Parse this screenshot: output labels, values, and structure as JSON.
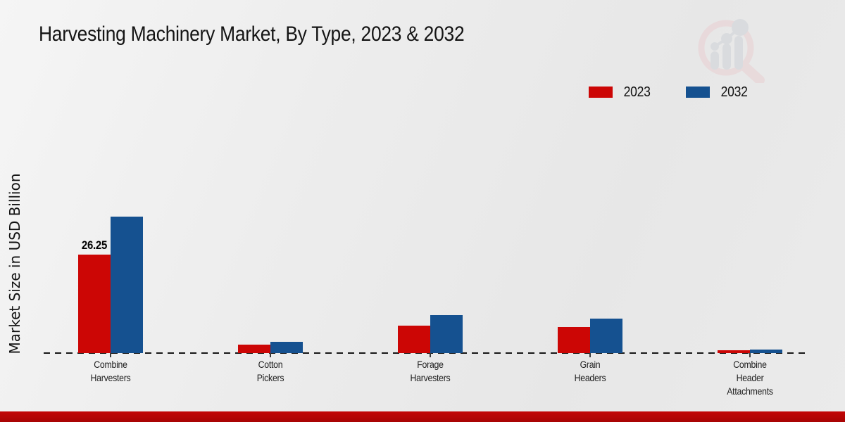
{
  "title": "Harvesting Machinery Market, By Type, 2023 & 2032",
  "ylabel": "Market Size in USD Billion",
  "colors": {
    "series_2023": "#cc0605",
    "series_2032": "#155190",
    "bottom_strip": "#b70505",
    "background": "#ececec",
    "baseline": "#161616"
  },
  "watermark_icon": "magnifier-growth-chart-logo",
  "chart_data": {
    "type": "bar",
    "title": "Harvesting Machinery Market, By Type, 2023 & 2032",
    "xlabel": "",
    "ylabel": "Market Size in USD Billion",
    "categories": [
      "Combine Harvesters",
      "Cotton Pickers",
      "Forage Harvesters",
      "Grain Headers",
      "Combine Header Attachments"
    ],
    "category_label_lines": [
      [
        "Combine",
        "Harvesters"
      ],
      [
        "Cotton",
        "Pickers"
      ],
      [
        "Forage",
        "Harvesters"
      ],
      [
        "Grain",
        "Headers"
      ],
      [
        "Combine",
        "Header",
        "Attachments"
      ]
    ],
    "series": [
      {
        "name": "2023",
        "color": "#cc0605",
        "values": [
          26.25,
          2.25,
          7.3,
          6.9,
          0.75
        ]
      },
      {
        "name": "2032",
        "color": "#155190",
        "values": [
          36.4,
          3.0,
          10.1,
          9.2,
          1.0
        ]
      }
    ],
    "annotations": [
      {
        "category_index": 0,
        "series_index": 0,
        "text": "26.25"
      }
    ],
    "ylim": [
      0,
      45
    ],
    "grid": false,
    "legend_position": "top-right",
    "baseline_style": "dashed"
  }
}
